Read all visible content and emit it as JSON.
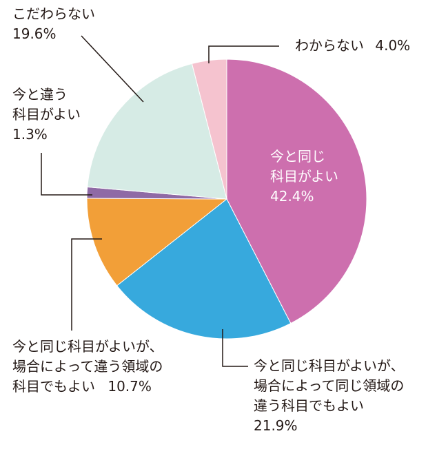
{
  "chart_data": {
    "type": "pie",
    "title": "",
    "start_angle_deg": 0,
    "direction": "clockwise",
    "slices": [
      {
        "label_lines": [
          "今と同じ",
          "科目がよい"
        ],
        "value": 42.4,
        "value_text": "42.4%",
        "color": "#cd6fae"
      },
      {
        "label_lines": [
          "今と同じ科目がよいが、",
          "場合によって同じ領域の",
          "違う科目でもよい"
        ],
        "value": 21.9,
        "value_text": "21.9%",
        "color": "#37a9dd"
      },
      {
        "label_lines": [
          "今と同じ科目がよいが、",
          "場合によって違う領域の",
          "科目でもよい"
        ],
        "value": 10.7,
        "value_text": "10.7%",
        "color": "#f29f38"
      },
      {
        "label_lines": [
          "今と違う",
          "科目がよい"
        ],
        "value": 1.3,
        "value_text": "1.3%",
        "color": "#8f6aa5"
      },
      {
        "label_lines": [
          "こだわらない"
        ],
        "value": 19.6,
        "value_text": "19.6%",
        "color": "#d6ebe5"
      },
      {
        "label_lines": [
          "わからない"
        ],
        "value": 4.0,
        "value_text": "4.0%",
        "color": "#f5c3cf"
      }
    ]
  }
}
